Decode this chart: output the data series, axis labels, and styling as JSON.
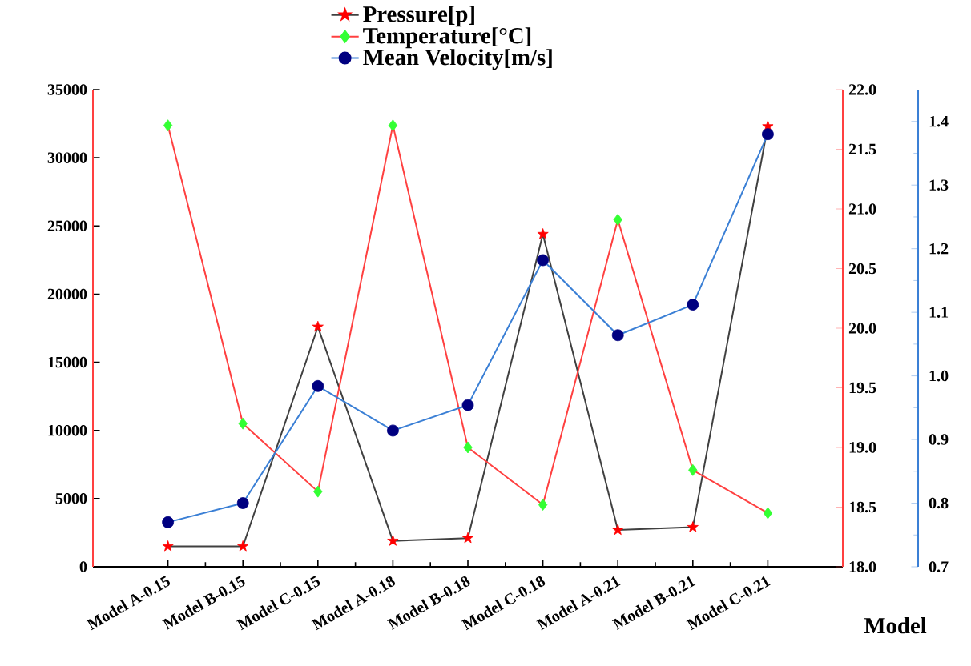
{
  "chart_data": {
    "type": "line",
    "xlabel": "Model",
    "legend": "top",
    "categories": [
      "Model A-0.15",
      "Model B-0.15",
      "Model C-0.15",
      "Model A-0.18",
      "Model B-0.18",
      "Model C-0.18",
      "Model A-0.21",
      "Model B-0.21",
      "Model C-0.21"
    ],
    "series": [
      {
        "name": "Pressure[p]",
        "axis": "y",
        "marker": "star",
        "color": "#404040",
        "colors": [
          "#ff0000",
          "#ff0000",
          "#ff0000",
          "#ff0000",
          "#ff0000",
          "#ff0000",
          "#ff0000",
          "#ff0000",
          "#ff0000"
        ],
        "values": [
          1500,
          1500,
          17600,
          1900,
          2100,
          24400,
          2700,
          2900,
          32300
        ]
      },
      {
        "name": "Temperature[°C]",
        "axis": "y2",
        "marker": "diamond",
        "color": "#ff4040",
        "colors": [
          "#33ff33",
          "#33ff33",
          "#33ff33",
          "#33ff33",
          "#33ff33",
          "#33ff33",
          "#33ff33",
          "#33ff33",
          "#33ff33"
        ],
        "values": [
          21.7,
          19.2,
          18.63,
          21.7,
          19.0,
          18.52,
          20.91,
          18.81,
          18.45
        ]
      },
      {
        "name": "Mean Velocity[m/s]",
        "axis": "y3",
        "marker": "circle",
        "color": "#3a7fd5",
        "colors": [
          "#000080",
          "#000080",
          "#000080",
          "#000080",
          "#000080",
          "#000080",
          "#000080",
          "#000080",
          "#000080"
        ],
        "values": [
          0.77,
          0.8,
          0.984,
          0.914,
          0.954,
          1.182,
          1.064,
          1.112,
          1.38
        ]
      }
    ],
    "ylim": [
      0,
      35000
    ],
    "yticks": [
      0,
      5000,
      10000,
      15000,
      20000,
      25000,
      30000,
      35000
    ],
    "y2lim": [
      18,
      22
    ],
    "y2ticks": [
      {
        "value": 18,
        "label": "18.0"
      },
      18.5,
      {
        "value": 19,
        "label": "19.0"
      },
      19.5,
      {
        "value": 20,
        "label": "20.0"
      },
      20.5,
      {
        "value": 21,
        "label": "21.0"
      },
      21.5,
      {
        "value": 22,
        "label": "22.0"
      }
    ],
    "y3lim": [
      0.7,
      1.45
    ],
    "y3ticks": [
      0.7,
      0.8,
      0.9,
      {
        "value": 1,
        "label": "1.0"
      },
      1.1,
      1.2,
      1.3,
      1.4
    ]
  }
}
